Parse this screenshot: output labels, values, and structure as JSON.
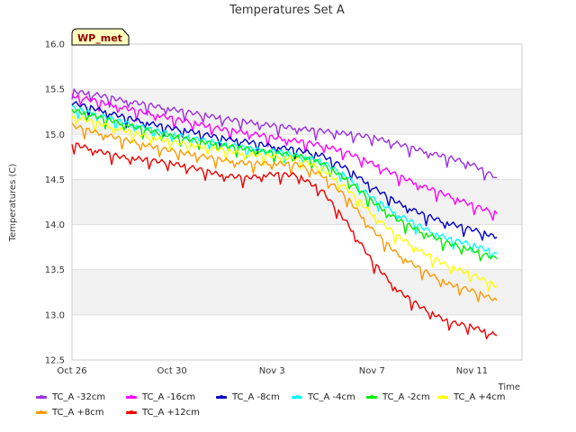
{
  "chart_data": {
    "type": "line",
    "title": "Temperatures Set A",
    "xlabel": "Time",
    "ylabel": "Temperatures (C)",
    "ylim": [
      12.5,
      16.0
    ],
    "xlim": [
      "2023-10-26",
      "2023-11-13"
    ],
    "x_ticks": [
      "Oct 26",
      "Oct 30",
      "Nov 3",
      "Nov 7",
      "Nov 11"
    ],
    "y_ticks": [
      "12.5",
      "13.0",
      "13.5",
      "14.0",
      "14.5",
      "15.0",
      "15.5",
      "16.0"
    ],
    "grid": "horizontal alternating bands",
    "x": [
      "2023-10-26",
      "2023-10-27",
      "2023-10-28",
      "2023-10-29",
      "2023-10-30",
      "2023-10-31",
      "2023-11-01",
      "2023-11-02",
      "2023-11-03",
      "2023-11-04",
      "2023-11-05",
      "2023-11-06",
      "2023-11-07",
      "2023-11-08",
      "2023-11-09",
      "2023-11-10",
      "2023-11-11",
      "2023-11-12"
    ],
    "series": [
      {
        "name": "TC_A -32cm",
        "color": "#9b30e0",
        "values": [
          15.48,
          15.44,
          15.38,
          15.33,
          15.28,
          15.23,
          15.18,
          15.14,
          15.1,
          15.07,
          15.04,
          15.01,
          14.97,
          14.9,
          14.82,
          14.75,
          14.67,
          14.52
        ]
      },
      {
        "name": "TC_A -16cm",
        "color": "#ff00ff",
        "values": [
          15.43,
          15.37,
          15.3,
          15.24,
          15.18,
          15.12,
          15.06,
          15.02,
          14.97,
          14.93,
          14.88,
          14.8,
          14.68,
          14.55,
          14.43,
          14.33,
          14.22,
          14.12
        ]
      },
      {
        "name": "TC_A -8cm",
        "color": "#0000cc",
        "values": [
          15.35,
          15.28,
          15.2,
          15.13,
          15.07,
          15.02,
          14.96,
          14.92,
          14.87,
          14.83,
          14.77,
          14.62,
          14.42,
          14.25,
          14.12,
          14.02,
          13.95,
          13.86
        ]
      },
      {
        "name": "TC_A -4cm",
        "color": "#00ffff",
        "values": [
          15.3,
          15.22,
          15.14,
          15.07,
          15.0,
          14.95,
          14.9,
          14.85,
          14.82,
          14.77,
          14.7,
          14.53,
          14.3,
          14.12,
          13.97,
          13.85,
          13.78,
          13.68
        ]
      },
      {
        "name": "TC_A -2cm",
        "color": "#00ee00",
        "values": [
          15.27,
          15.2,
          15.12,
          15.05,
          14.98,
          14.93,
          14.88,
          14.84,
          14.8,
          14.77,
          14.68,
          14.5,
          14.26,
          14.06,
          13.92,
          13.8,
          13.72,
          13.62
        ]
      },
      {
        "name": "TC_A +4cm",
        "color": "#ffff00",
        "values": [
          15.2,
          15.13,
          15.05,
          14.98,
          14.92,
          14.87,
          14.83,
          14.78,
          14.76,
          14.73,
          14.62,
          14.4,
          14.12,
          13.88,
          13.7,
          13.55,
          13.45,
          13.32
        ]
      },
      {
        "name": "TC_A +8cm",
        "color": "#ff9900",
        "values": [
          15.1,
          15.02,
          14.95,
          14.88,
          14.82,
          14.77,
          14.72,
          14.68,
          14.68,
          14.67,
          14.55,
          14.3,
          13.95,
          13.68,
          13.5,
          13.35,
          13.27,
          13.16
        ]
      },
      {
        "name": "TC_A +12cm",
        "color": "#ee0000",
        "values": [
          14.9,
          14.82,
          14.75,
          14.72,
          14.68,
          14.62,
          14.55,
          14.52,
          14.56,
          14.55,
          14.38,
          14.02,
          13.6,
          13.28,
          13.08,
          12.93,
          12.87,
          12.77
        ]
      }
    ]
  },
  "badge": {
    "label": "WP_met"
  }
}
